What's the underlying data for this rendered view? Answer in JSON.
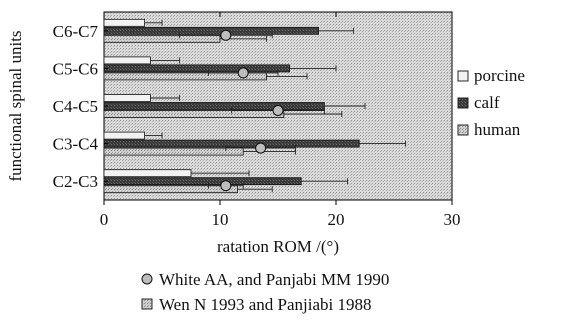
{
  "chart_data": {
    "type": "bar",
    "orientation": "horizontal",
    "title": "",
    "xlabel": "ratation ROM /(°)",
    "ylabel": "functional spinal units",
    "xlim": [
      0,
      30
    ],
    "x_ticks": [
      "0",
      "10",
      "20",
      "30"
    ],
    "categories": [
      "C2-C3",
      "C3-C4",
      "C4-C5",
      "C5-C6",
      "C6-C7"
    ],
    "grid": false,
    "legend_position": "right",
    "series": [
      {
        "name": "porcine",
        "values": [
          7.5,
          3.5,
          4.0,
          4.0,
          3.5
        ],
        "errors": [
          5.0,
          1.5,
          2.5,
          2.5,
          1.5
        ],
        "color": "#f2f2f2"
      },
      {
        "name": "calf",
        "values": [
          17.0,
          22.0,
          19.0,
          16.0,
          18.5
        ],
        "errors": [
          4.0,
          4.0,
          3.5,
          4.0,
          3.0
        ],
        "color": "#3a3a3a"
      },
      {
        "name": "human",
        "values": [
          11.5,
          12.0,
          15.5,
          14.0,
          10.0
        ],
        "errors": [
          3.0,
          4.5,
          5.0,
          3.5,
          4.0
        ],
        "color": "#c8c8c8"
      }
    ],
    "reference_points": {
      "values": [
        10.5,
        13.5,
        15.0,
        12.0,
        10.5
      ],
      "errors": [
        1.5,
        3.0,
        4.0,
        3.0,
        4.0
      ]
    },
    "legend": [
      {
        "label": "porcine",
        "symbol": "porcine"
      },
      {
        "label": "calf",
        "symbol": "calf"
      },
      {
        "label": "human",
        "symbol": "human"
      }
    ],
    "sources": [
      {
        "label": "White AA, and Panjabi MM 1990",
        "symbol": "circle"
      },
      {
        "label": "Wen N 1993 and Panjiabi 1988",
        "symbol": "square"
      }
    ]
  },
  "colors": {
    "plot_background": "#d4d4d4",
    "porcine": "#f2f2f2",
    "calf": "#3a3a3a",
    "human": "#c8c8c8",
    "marker": "#bdbdbd",
    "axis": "#000000"
  }
}
